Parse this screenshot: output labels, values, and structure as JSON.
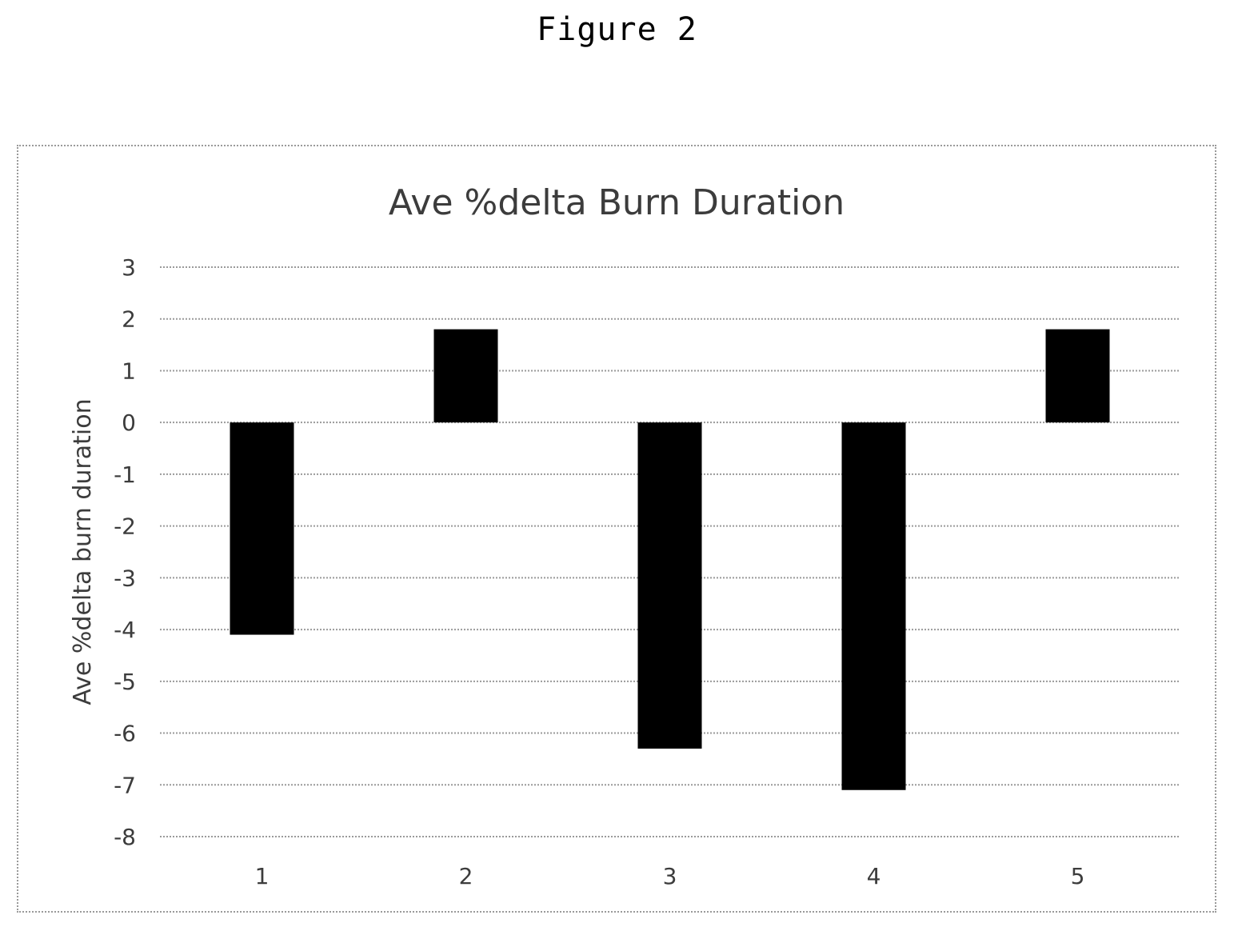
{
  "figure": {
    "label": "Figure 2"
  },
  "chart_data": {
    "type": "bar",
    "title": "Ave %delta Burn Duration",
    "xlabel": "",
    "ylabel": "Ave %delta burn duration",
    "categories": [
      "1",
      "2",
      "3",
      "4",
      "5"
    ],
    "values": [
      -4.1,
      1.8,
      -6.3,
      -7.1,
      1.8
    ],
    "ylim": [
      -8,
      3
    ],
    "yticks": [
      3,
      2,
      1,
      0,
      -1,
      -2,
      -3,
      -4,
      -5,
      -6,
      -7,
      -8
    ],
    "grid": true,
    "legend": "none",
    "bar_color": "#000000"
  }
}
